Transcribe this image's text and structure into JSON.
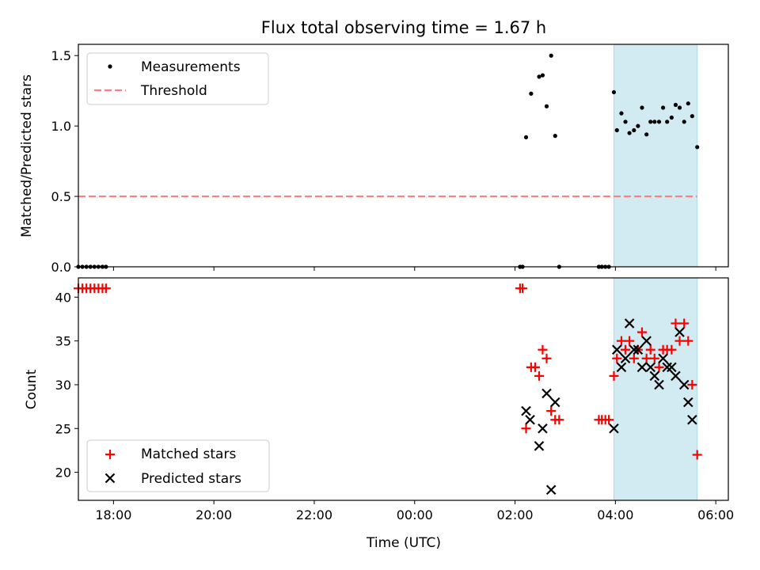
{
  "chart_data": {
    "type": "scatter",
    "title": "Flux total observing time = 1.67 h",
    "xlabel": "Time (UTC)",
    "xlim": [
      -6.7,
      6.25
    ],
    "x_ticks": [
      {
        "v": -6,
        "label": "18:00"
      },
      {
        "v": -4,
        "label": "20:00"
      },
      {
        "v": -2,
        "label": "22:00"
      },
      {
        "v": 0,
        "label": "00:00"
      },
      {
        "v": 2,
        "label": "02:00"
      },
      {
        "v": 4,
        "label": "04:00"
      },
      {
        "v": 6,
        "label": "06:00"
      }
    ],
    "shaded_span": [
      3.97,
      5.63
    ],
    "colors": {
      "measurements": "#000000",
      "threshold": "#ff7f7f",
      "matched": "#ff0000",
      "predicted": "#000000",
      "shade": "#add8e6"
    },
    "top_panel": {
      "ylabel": "Matched/Predicted stars",
      "ylim": [
        0,
        1.58
      ],
      "y_ticks": [
        {
          "v": 0,
          "label": "0.0"
        },
        {
          "v": 0.5,
          "label": "0.5"
        },
        {
          "v": 1.0,
          "label": "1.0"
        },
        {
          "v": 1.5,
          "label": "1.5"
        }
      ],
      "legend": [
        "Measurements",
        "Threshold"
      ],
      "threshold": {
        "x": [
          -6.7,
          5.63
        ],
        "y": 0.5,
        "x_start": -6.7
      },
      "measurements": [
        {
          "x": -6.7,
          "y": 0
        },
        {
          "x": -6.62,
          "y": 0
        },
        {
          "x": -6.54,
          "y": 0
        },
        {
          "x": -6.46,
          "y": 0
        },
        {
          "x": -6.38,
          "y": 0
        },
        {
          "x": -6.3,
          "y": 0
        },
        {
          "x": -6.22,
          "y": 0
        },
        {
          "x": -6.15,
          "y": 0
        },
        {
          "x": 2.1,
          "y": 0
        },
        {
          "x": 2.15,
          "y": 0
        },
        {
          "x": 2.22,
          "y": 0.92
        },
        {
          "x": 2.32,
          "y": 1.23
        },
        {
          "x": 2.48,
          "y": 1.35
        },
        {
          "x": 2.55,
          "y": 1.36
        },
        {
          "x": 2.63,
          "y": 1.14
        },
        {
          "x": 2.72,
          "y": 1.5
        },
        {
          "x": 2.8,
          "y": 0.93
        },
        {
          "x": 2.88,
          "y": 0
        },
        {
          "x": 3.67,
          "y": 0
        },
        {
          "x": 3.73,
          "y": 0
        },
        {
          "x": 3.8,
          "y": 0
        },
        {
          "x": 3.87,
          "y": 0
        },
        {
          "x": 3.97,
          "y": 1.24
        },
        {
          "x": 4.03,
          "y": 0.97
        },
        {
          "x": 4.12,
          "y": 1.09
        },
        {
          "x": 4.2,
          "y": 1.03
        },
        {
          "x": 4.28,
          "y": 0.95
        },
        {
          "x": 4.37,
          "y": 0.97
        },
        {
          "x": 4.45,
          "y": 1.0
        },
        {
          "x": 4.53,
          "y": 1.13
        },
        {
          "x": 4.62,
          "y": 0.94
        },
        {
          "x": 4.7,
          "y": 1.03
        },
        {
          "x": 4.78,
          "y": 1.03
        },
        {
          "x": 4.87,
          "y": 1.03
        },
        {
          "x": 4.95,
          "y": 1.13
        },
        {
          "x": 5.03,
          "y": 1.03
        },
        {
          "x": 5.12,
          "y": 1.06
        },
        {
          "x": 5.2,
          "y": 1.15
        },
        {
          "x": 5.28,
          "y": 1.13
        },
        {
          "x": 5.37,
          "y": 1.03
        },
        {
          "x": 5.45,
          "y": 1.16
        },
        {
          "x": 5.53,
          "y": 1.07
        },
        {
          "x": 5.63,
          "y": 0.85
        }
      ]
    },
    "bottom_panel": {
      "ylabel": "Count",
      "ylim": [
        16.8,
        42.2
      ],
      "y_ticks": [
        {
          "v": 20,
          "label": "20"
        },
        {
          "v": 25,
          "label": "25"
        },
        {
          "v": 30,
          "label": "30"
        },
        {
          "v": 35,
          "label": "35"
        },
        {
          "v": 40,
          "label": "40"
        }
      ],
      "legend": [
        "Matched stars",
        "Predicted stars"
      ],
      "matched": [
        {
          "x": -6.7,
          "y": 41
        },
        {
          "x": -6.62,
          "y": 41
        },
        {
          "x": -6.54,
          "y": 41
        },
        {
          "x": -6.46,
          "y": 41
        },
        {
          "x": -6.38,
          "y": 41
        },
        {
          "x": -6.3,
          "y": 41
        },
        {
          "x": -6.22,
          "y": 41
        },
        {
          "x": -6.15,
          "y": 41
        },
        {
          "x": 2.1,
          "y": 41
        },
        {
          "x": 2.15,
          "y": 41
        },
        {
          "x": 2.22,
          "y": 25
        },
        {
          "x": 2.32,
          "y": 32
        },
        {
          "x": 2.4,
          "y": 32
        },
        {
          "x": 2.48,
          "y": 31
        },
        {
          "x": 2.55,
          "y": 34
        },
        {
          "x": 2.63,
          "y": 33
        },
        {
          "x": 2.72,
          "y": 27
        },
        {
          "x": 2.8,
          "y": 26
        },
        {
          "x": 2.88,
          "y": 26
        },
        {
          "x": 3.67,
          "y": 26
        },
        {
          "x": 3.73,
          "y": 26
        },
        {
          "x": 3.8,
          "y": 26
        },
        {
          "x": 3.87,
          "y": 26
        },
        {
          "x": 3.97,
          "y": 31
        },
        {
          "x": 4.03,
          "y": 33
        },
        {
          "x": 4.12,
          "y": 35
        },
        {
          "x": 4.2,
          "y": 34
        },
        {
          "x": 4.28,
          "y": 35
        },
        {
          "x": 4.37,
          "y": 33
        },
        {
          "x": 4.45,
          "y": 34
        },
        {
          "x": 4.53,
          "y": 36
        },
        {
          "x": 4.62,
          "y": 33
        },
        {
          "x": 4.7,
          "y": 34
        },
        {
          "x": 4.78,
          "y": 33
        },
        {
          "x": 4.87,
          "y": 32
        },
        {
          "x": 4.95,
          "y": 34
        },
        {
          "x": 5.03,
          "y": 34
        },
        {
          "x": 5.12,
          "y": 34
        },
        {
          "x": 5.2,
          "y": 37
        },
        {
          "x": 5.28,
          "y": 35
        },
        {
          "x": 5.37,
          "y": 37
        },
        {
          "x": 5.45,
          "y": 35
        },
        {
          "x": 5.53,
          "y": 30
        },
        {
          "x": 5.63,
          "y": 22
        }
      ],
      "predicted": [
        {
          "x": 2.22,
          "y": 27
        },
        {
          "x": 2.3,
          "y": 26
        },
        {
          "x": 2.48,
          "y": 23
        },
        {
          "x": 2.55,
          "y": 25
        },
        {
          "x": 2.63,
          "y": 29
        },
        {
          "x": 2.72,
          "y": 18
        },
        {
          "x": 2.8,
          "y": 28
        },
        {
          "x": 3.97,
          "y": 25
        },
        {
          "x": 4.03,
          "y": 34
        },
        {
          "x": 4.12,
          "y": 32
        },
        {
          "x": 4.2,
          "y": 33
        },
        {
          "x": 4.28,
          "y": 37
        },
        {
          "x": 4.37,
          "y": 34
        },
        {
          "x": 4.45,
          "y": 34
        },
        {
          "x": 4.53,
          "y": 32
        },
        {
          "x": 4.62,
          "y": 35
        },
        {
          "x": 4.7,
          "y": 32
        },
        {
          "x": 4.78,
          "y": 31
        },
        {
          "x": 4.87,
          "y": 30
        },
        {
          "x": 4.95,
          "y": 33
        },
        {
          "x": 5.03,
          "y": 32
        },
        {
          "x": 5.12,
          "y": 32
        },
        {
          "x": 5.2,
          "y": 31
        },
        {
          "x": 5.28,
          "y": 36
        },
        {
          "x": 5.37,
          "y": 30
        },
        {
          "x": 5.45,
          "y": 28
        },
        {
          "x": 5.53,
          "y": 26
        }
      ]
    }
  }
}
